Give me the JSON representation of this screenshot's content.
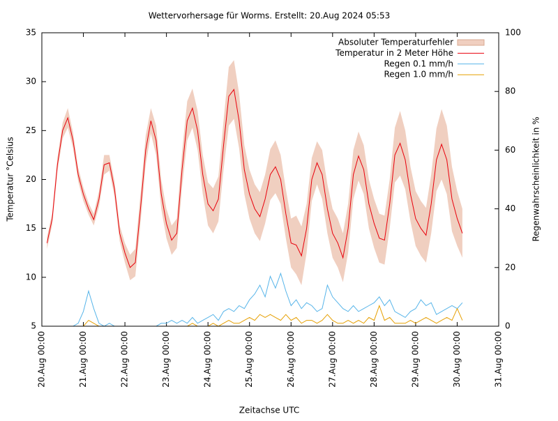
{
  "chart_data": {
    "type": "line",
    "title": "Wettervorhersage für Worms. Erstellt: 20.Aug 2024 05:53",
    "xlabel": "Zeitachse UTC",
    "ylabel": "Temperatur °Celsius",
    "y2label": "Regenwahrscheinlichkeit in %",
    "xlim": [
      "20.Aug 00:00",
      "31.Aug 00:00"
    ],
    "xticks": [
      "20.Aug 00:00",
      "21.Aug 00:00",
      "22.Aug 00:00",
      "23.Aug 00:00",
      "24.Aug 00:00",
      "25.Aug 00:00",
      "26.Aug 00:00",
      "27.Aug 00:00",
      "28.Aug 00:00",
      "29.Aug 00:00",
      "30.Aug 00:00",
      "31.Aug 00:00"
    ],
    "ylim": [
      5,
      35
    ],
    "yticks": [
      5,
      10,
      15,
      20,
      25,
      30,
      35
    ],
    "y2lim": [
      0,
      100
    ],
    "y2ticks": [
      0,
      20,
      40,
      60,
      80,
      100
    ],
    "legend": "upper right",
    "x": [
      "20.Aug 03:00",
      "20.Aug 06:00",
      "20.Aug 09:00",
      "20.Aug 12:00",
      "20.Aug 15:00",
      "20.Aug 18:00",
      "20.Aug 21:00",
      "21.Aug 00:00",
      "21.Aug 03:00",
      "21.Aug 06:00",
      "21.Aug 09:00",
      "21.Aug 12:00",
      "21.Aug 15:00",
      "21.Aug 18:00",
      "21.Aug 21:00",
      "22.Aug 00:00",
      "22.Aug 03:00",
      "22.Aug 06:00",
      "22.Aug 09:00",
      "22.Aug 12:00",
      "22.Aug 15:00",
      "22.Aug 18:00",
      "22.Aug 21:00",
      "23.Aug 00:00",
      "23.Aug 03:00",
      "23.Aug 06:00",
      "23.Aug 09:00",
      "23.Aug 12:00",
      "23.Aug 15:00",
      "23.Aug 18:00",
      "23.Aug 21:00",
      "24.Aug 00:00",
      "24.Aug 03:00",
      "24.Aug 06:00",
      "24.Aug 09:00",
      "24.Aug 12:00",
      "24.Aug 15:00",
      "24.Aug 18:00",
      "24.Aug 21:00",
      "25.Aug 00:00",
      "25.Aug 03:00",
      "25.Aug 06:00",
      "25.Aug 09:00",
      "25.Aug 12:00",
      "25.Aug 15:00",
      "25.Aug 18:00",
      "25.Aug 21:00",
      "26.Aug 00:00",
      "26.Aug 03:00",
      "26.Aug 06:00",
      "26.Aug 09:00",
      "26.Aug 12:00",
      "26.Aug 15:00",
      "26.Aug 18:00",
      "26.Aug 21:00",
      "27.Aug 00:00",
      "27.Aug 03:00",
      "27.Aug 06:00",
      "27.Aug 09:00",
      "27.Aug 12:00",
      "27.Aug 15:00",
      "27.Aug 18:00",
      "27.Aug 21:00",
      "28.Aug 00:00",
      "28.Aug 03:00",
      "28.Aug 06:00",
      "28.Aug 09:00",
      "28.Aug 12:00",
      "28.Aug 15:00",
      "28.Aug 18:00",
      "28.Aug 21:00",
      "29.Aug 00:00",
      "29.Aug 03:00",
      "29.Aug 06:00",
      "29.Aug 09:00",
      "29.Aug 12:00",
      "29.Aug 15:00",
      "29.Aug 18:00",
      "29.Aug 21:00",
      "30.Aug 00:00",
      "30.Aug 03:00"
    ],
    "series": [
      {
        "name": "Absoluter Temperaturfehler",
        "style": "band",
        "color": "#f0cfc0",
        "values": [
          0.6,
          0.6,
          0.7,
          0.8,
          1,
          0.8,
          0.7,
          0.7,
          0.6,
          0.6,
          0.8,
          1,
          0.8,
          0.8,
          0.8,
          1,
          1.3,
          1.4,
          1.5,
          1.5,
          1.3,
          1.5,
          1.5,
          1.5,
          1.5,
          1.5,
          1.8,
          2,
          2,
          2,
          2,
          2.2,
          2.3,
          2.3,
          2.5,
          3,
          3,
          2.8,
          2.5,
          2.5,
          2.5,
          2.5,
          2.5,
          2.6,
          2.7,
          2.5,
          2.5,
          2.5,
          3,
          3,
          2.5,
          2.2,
          2.2,
          2.5,
          2.5,
          2.5,
          2.5,
          2.5,
          2.5,
          2.5,
          2.5,
          2.5,
          2.5,
          2.5,
          2.5,
          2.5,
          2.5,
          2.8,
          3.3,
          3,
          2.8,
          2.8,
          2.8,
          2.8,
          3,
          3.2,
          3.6,
          3.5,
          3.3,
          2.8,
          2.5
        ]
      },
      {
        "name": "Temperatur in 2 Meter Höhe",
        "style": "line",
        "color": "#e8000b",
        "values": [
          13.5,
          16,
          21.5,
          25,
          26.3,
          24,
          20.5,
          18.5,
          17,
          15.9,
          18,
          21.5,
          21.7,
          19,
          14.5,
          12.5,
          11,
          11.5,
          17,
          23,
          26,
          24,
          18.5,
          15.5,
          13.8,
          14.5,
          21,
          26,
          27.3,
          25,
          20.5,
          17.5,
          16.8,
          18,
          23.5,
          28.5,
          29.2,
          26,
          21,
          18.5,
          17,
          16.2,
          18,
          20.5,
          21.3,
          20,
          16.5,
          13.5,
          13.3,
          12.2,
          15,
          20,
          21.7,
          20.5,
          17,
          14.5,
          13.5,
          12,
          15,
          20.5,
          22.4,
          21,
          17.5,
          15.5,
          14,
          13.8,
          17.5,
          22.5,
          23.7,
          22,
          18.5,
          16,
          15,
          14.3,
          17.5,
          22,
          23.6,
          22,
          18,
          16,
          14.5
        ]
      },
      {
        "name": "Regen 0.1 mm/h",
        "style": "line",
        "axis": "y2",
        "color": "#56b4e9",
        "values": [
          0,
          0,
          0,
          0,
          0,
          0,
          1,
          5,
          12,
          6,
          1,
          0,
          1,
          0,
          0,
          0,
          0,
          0,
          0,
          0,
          0,
          0,
          1,
          1,
          2,
          1,
          2,
          1,
          3,
          1,
          2,
          3,
          4,
          2,
          5,
          6,
          5,
          7,
          6,
          9,
          11,
          14,
          10,
          17,
          13,
          18,
          12,
          7,
          9,
          6,
          8,
          7,
          5,
          6,
          14,
          10,
          8,
          6,
          5,
          7,
          5,
          6,
          7,
          8,
          10,
          7,
          9,
          5,
          4,
          3,
          5,
          6,
          9,
          7,
          8,
          4,
          5,
          6,
          7,
          6,
          8
        ]
      },
      {
        "name": "Regen 1.0 mm/h",
        "style": "line",
        "axis": "y2",
        "color": "#e69f00",
        "values": [
          0,
          0,
          0,
          0,
          0,
          0,
          0,
          0,
          2,
          1,
          0,
          0,
          0,
          0,
          0,
          0,
          0,
          0,
          0,
          0,
          0,
          0,
          0,
          0,
          0,
          0,
          0,
          0,
          1,
          0,
          0,
          0,
          1,
          0,
          1,
          2,
          1,
          1,
          2,
          3,
          2,
          4,
          3,
          4,
          3,
          2,
          4,
          2,
          3,
          1,
          2,
          2,
          1,
          2,
          4,
          2,
          1,
          1,
          2,
          1,
          2,
          1,
          3,
          2,
          7,
          2,
          3,
          1,
          1,
          1,
          2,
          1,
          2,
          3,
          2,
          1,
          2,
          3,
          2,
          6,
          2
        ]
      }
    ]
  }
}
